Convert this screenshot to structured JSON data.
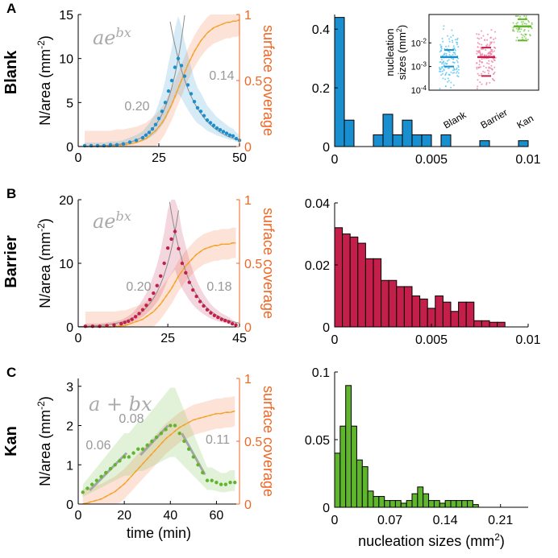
{
  "colors": {
    "blank": "#1a8fcf",
    "barrier": "#c41e4a",
    "kan": "#5fb52b",
    "orange": "#f26522",
    "fit": "#f5a623",
    "gray": "#8c8c8c"
  },
  "chart_data": [
    {
      "panel": "A",
      "row_label": "Blank",
      "type": "scatter",
      "formula": "ae^{bx}",
      "rate_labels": [
        "0.20",
        "0.14"
      ],
      "xlabel": "",
      "ylabel": "N/area (mm⁻²)",
      "y2label": "surface coverage",
      "xlim": [
        0,
        50
      ],
      "ylim": [
        0,
        15
      ],
      "y2lim": [
        0,
        1
      ],
      "xticks": [
        "0",
        "25",
        "50"
      ],
      "yticks": [
        "0",
        "5",
        "10",
        "15"
      ],
      "y2ticks": [
        "0",
        "0.5",
        "1"
      ],
      "x": [
        2,
        4,
        6,
        8,
        10,
        12,
        14,
        16,
        18,
        20,
        21,
        22,
        23,
        24,
        25,
        26,
        27,
        28,
        29,
        30,
        31,
        32,
        33,
        34,
        35,
        36,
        37,
        38,
        39,
        40,
        41,
        42,
        43,
        44,
        45,
        46,
        47,
        48,
        49,
        50
      ],
      "y": [
        0.1,
        0.1,
        0.1,
        0.1,
        0.2,
        0.2,
        0.3,
        0.5,
        0.7,
        1.0,
        1.3,
        1.6,
        2.0,
        2.5,
        3.2,
        4.0,
        5.0,
        6.3,
        7.5,
        9.0,
        10.0,
        9.2,
        8.0,
        7.0,
        6.0,
        5.1,
        4.4,
        4.0,
        3.5,
        3.0,
        2.7,
        2.4,
        2.1,
        1.9,
        1.7,
        1.5,
        1.3,
        1.2,
        0.9,
        0.7
      ],
      "coverage": [
        0,
        0,
        0,
        0,
        0,
        0.01,
        0.01,
        0.02,
        0.03,
        0.05,
        0.06,
        0.08,
        0.1,
        0.12,
        0.15,
        0.18,
        0.22,
        0.27,
        0.32,
        0.38,
        0.44,
        0.5,
        0.56,
        0.62,
        0.67,
        0.72,
        0.76,
        0.8,
        0.83,
        0.86,
        0.88,
        0.9,
        0.91,
        0.92,
        0.93,
        0.94,
        0.94,
        0.95,
        0.95,
        0.96
      ]
    },
    {
      "panel": "A",
      "type": "bar",
      "xlim": [
        0,
        0.01
      ],
      "ylim": [
        0,
        0.45
      ],
      "xticks": [
        "0",
        "0.005",
        "0.01"
      ],
      "yticks": [
        "0",
        "0.2",
        "0.4"
      ],
      "bin_width": 0.0005,
      "values": [
        0.44,
        0.09,
        0,
        0,
        0.04,
        0.11,
        0.04,
        0.09,
        0.04,
        0.04,
        0,
        0.04,
        0,
        0,
        0,
        0.02,
        0,
        0,
        0,
        0.02
      ]
    },
    {
      "panel": "A-inset",
      "type": "scatter",
      "ylabel": "nucleation sizes (mm²)",
      "categories": [
        "Blank",
        "Barrier",
        "Kan"
      ],
      "yticks": [
        "10⁻⁴",
        "10⁻³",
        "10⁻²"
      ],
      "medians_log10": [
        -2.6,
        -2.6,
        -1.3
      ],
      "lows_log10": [
        -3.0,
        -3.4,
        -1.9
      ],
      "highs_log10": [
        -2.3,
        -2.2,
        -1.0
      ]
    },
    {
      "panel": "B",
      "row_label": "Barrier",
      "type": "scatter",
      "formula": "ae^{bx}",
      "rate_labels": [
        "0.20",
        "0.18"
      ],
      "xlabel": "",
      "ylabel": "N/area (mm⁻²)",
      "y2label": "surface coverage",
      "xlim": [
        0,
        45
      ],
      "ylim": [
        0,
        20
      ],
      "y2lim": [
        0,
        1
      ],
      "xticks": [
        "0",
        "25",
        "45"
      ],
      "yticks": [
        "0",
        "10",
        "20"
      ],
      "y2ticks": [
        "0",
        "0.5",
        "1"
      ],
      "x": [
        2,
        4,
        6,
        8,
        10,
        12,
        13,
        14,
        15,
        16,
        17,
        18,
        19,
        20,
        21,
        22,
        23,
        24,
        25,
        26,
        27,
        28,
        29,
        30,
        31,
        32,
        33,
        34,
        35,
        36,
        37,
        38,
        39,
        40,
        41,
        42,
        43,
        44
      ],
      "y": [
        0.1,
        0.1,
        0.1,
        0.2,
        0.3,
        0.5,
        0.7,
        0.9,
        1.2,
        1.6,
        2.1,
        2.7,
        3.4,
        4.3,
        5.3,
        6.5,
        8.0,
        10.0,
        12.4,
        13.8,
        15.0,
        12.3,
        10.0,
        8.5,
        7.0,
        5.8,
        4.8,
        4.0,
        3.3,
        2.7,
        2.2,
        1.8,
        1.5,
        1.2,
        1.0,
        0.8,
        0.5,
        0.3
      ],
      "coverage": [
        0,
        0,
        0,
        0,
        0,
        0.01,
        0.01,
        0.02,
        0.03,
        0.04,
        0.05,
        0.06,
        0.08,
        0.1,
        0.12,
        0.15,
        0.18,
        0.22,
        0.26,
        0.3,
        0.35,
        0.4,
        0.44,
        0.48,
        0.51,
        0.54,
        0.57,
        0.59,
        0.61,
        0.62,
        0.63,
        0.64,
        0.64,
        0.65,
        0.65,
        0.65,
        0.66,
        0.66
      ]
    },
    {
      "panel": "B",
      "type": "bar",
      "xlim": [
        0,
        0.01
      ],
      "ylim": [
        0,
        0.04
      ],
      "xticks": [
        "0",
        "0.005",
        "0.01"
      ],
      "yticks": [
        "0",
        "0.02",
        "0.04"
      ],
      "bin_width": 0.0004,
      "values": [
        0.032,
        0.03,
        0.029,
        0.027,
        0.022,
        0.022,
        0.015,
        0.015,
        0.013,
        0.013,
        0.01,
        0.009,
        0.006,
        0.01,
        0.008,
        0.005,
        0.008,
        0.008,
        0.002,
        0.002,
        0.0015,
        0.0015
      ]
    },
    {
      "panel": "C",
      "row_label": "Kan",
      "type": "scatter",
      "formula": "a + bx",
      "rate_labels": [
        "0.06",
        "0.08",
        "0.11"
      ],
      "xlabel": "time (min)",
      "ylabel": "N/area (mm⁻²)",
      "y2label": "surface coverage",
      "xlim": [
        0,
        70
      ],
      "ylim": [
        0,
        3.2
      ],
      "y2lim": [
        0,
        1
      ],
      "xticks": [
        "0",
        "20",
        "40",
        "60"
      ],
      "yticks": [
        "0",
        "1",
        "2",
        "3"
      ],
      "y2ticks": [
        "0",
        "0.5",
        "1"
      ],
      "x": [
        2,
        4,
        6,
        8,
        10,
        12,
        14,
        16,
        18,
        20,
        22,
        24,
        26,
        28,
        30,
        32,
        34,
        36,
        38,
        40,
        42,
        44,
        46,
        48,
        50,
        52,
        54,
        56,
        58,
        60,
        62,
        64,
        66,
        68
      ],
      "y": [
        0.3,
        0.4,
        0.5,
        0.6,
        0.7,
        0.8,
        0.9,
        1.0,
        1.1,
        1.2,
        1.2,
        1.3,
        1.4,
        1.4,
        1.5,
        1.6,
        1.7,
        1.8,
        1.9,
        2.0,
        2.0,
        1.8,
        1.6,
        1.4,
        1.2,
        1.0,
        0.8,
        0.6,
        0.6,
        0.55,
        0.5,
        0.5,
        0.55,
        0.55
      ],
      "coverage": [
        0,
        0.01,
        0.02,
        0.03,
        0.04,
        0.06,
        0.08,
        0.1,
        0.13,
        0.16,
        0.2,
        0.24,
        0.28,
        0.32,
        0.36,
        0.4,
        0.44,
        0.48,
        0.52,
        0.55,
        0.58,
        0.61,
        0.63,
        0.65,
        0.67,
        0.68,
        0.69,
        0.7,
        0.71,
        0.72,
        0.72,
        0.73,
        0.73,
        0.74
      ]
    },
    {
      "panel": "C",
      "type": "bar",
      "xlabel": "nucleation sizes (mm²)",
      "xlim": [
        0,
        0.245
      ],
      "ylim": [
        0,
        0.1
      ],
      "xticks": [
        "0",
        "0.07",
        "0.14",
        "0.21"
      ],
      "yticks": [
        "0",
        "0.05",
        "0.1"
      ],
      "bin_width": 0.007,
      "values": [
        0.04,
        0.06,
        0.09,
        0.06,
        0.035,
        0.03,
        0.012,
        0.008,
        0.008,
        0.005,
        0.005,
        0.005,
        0.003,
        0.005,
        0.01,
        0.015,
        0.01,
        0.005,
        0.005,
        0.003,
        0.005,
        0.005,
        0.005,
        0.005,
        0.005,
        0.002
      ]
    }
  ],
  "panel_letters": [
    "A",
    "B",
    "C"
  ]
}
